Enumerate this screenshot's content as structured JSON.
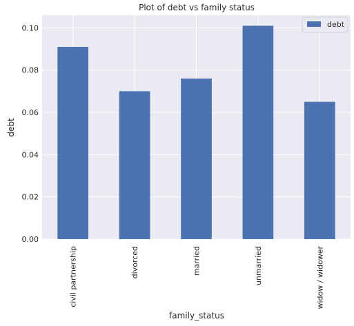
{
  "chart_data": {
    "type": "bar",
    "title": "Plot of debt vs family status",
    "xlabel": "family_status",
    "ylabel": "debt",
    "categories": [
      "civil partnership",
      "divorced",
      "married",
      "unmarried",
      "widow / widower"
    ],
    "series": [
      {
        "name": "debt",
        "values": [
          0.091,
          0.07,
          0.076,
          0.101,
          0.065
        ]
      }
    ],
    "ylim": [
      0,
      0.106
    ],
    "yticks": [
      0.0,
      0.02,
      0.04,
      0.06,
      0.08,
      0.1
    ],
    "ytick_labels": [
      "0.00",
      "0.02",
      "0.04",
      "0.06",
      "0.08",
      "0.10"
    ],
    "grid": true,
    "legend_position": "top-right",
    "colors": {
      "bar": "#4c72b0",
      "plot_background": "#eaeaf2",
      "grid": "#ffffff"
    }
  }
}
